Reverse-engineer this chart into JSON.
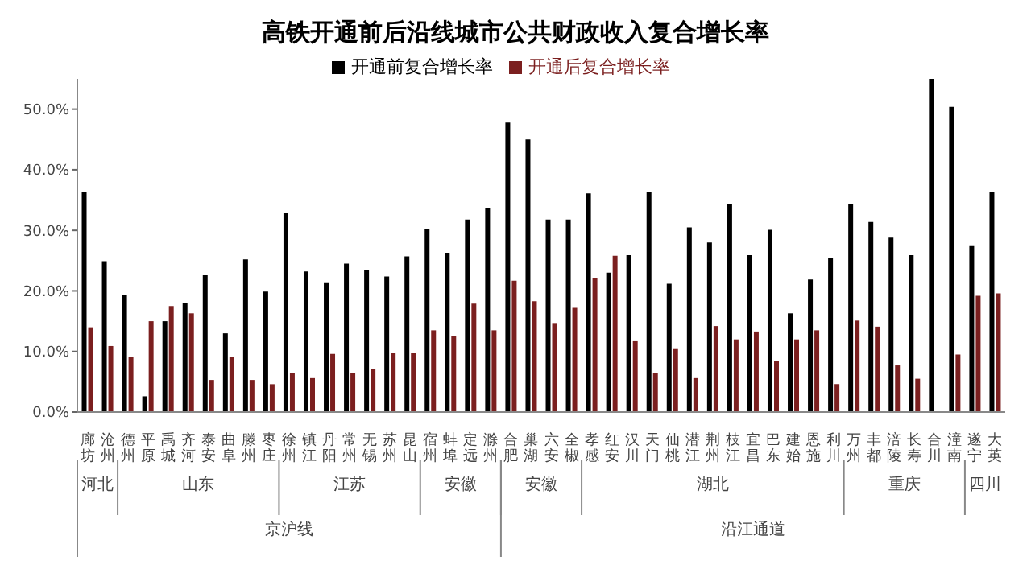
{
  "chart_data": {
    "type": "bar",
    "title": "高铁开通前后沿线城市公共财政收入复合增长率",
    "categories": [
      "廊坊",
      "沧州",
      "德州",
      "平原",
      "禹城",
      "齐河",
      "泰安",
      "曲阜",
      "滕州",
      "枣庄",
      "徐州",
      "镇江",
      "丹阳",
      "常州",
      "无锡",
      "苏州",
      "昆山",
      "宿州",
      "蚌埠",
      "定远",
      "滁州",
      "合肥",
      "巢湖",
      "六安",
      "全椒",
      "孝感",
      "红安",
      "汉川",
      "天门",
      "仙桃",
      "潜江",
      "荆州",
      "枝江",
      "宜昌",
      "巴东",
      "建始",
      "恩施",
      "利川",
      "万州",
      "丰都",
      "涪陵",
      "长寿",
      "合川",
      "潼南",
      "遂宁",
      "大英"
    ],
    "series": [
      {
        "name": "开通前复合增长率",
        "color": "#000000",
        "values": [
          36.4,
          24.9,
          19.3,
          2.6,
          15.0,
          18.0,
          22.6,
          13.0,
          25.2,
          19.9,
          32.8,
          23.2,
          21.3,
          24.5,
          23.4,
          22.4,
          25.7,
          30.3,
          26.3,
          31.8,
          33.6,
          47.8,
          45.0,
          31.8,
          31.8,
          36.1,
          23.0,
          25.9,
          36.4,
          21.2,
          30.5,
          28.0,
          34.3,
          25.9,
          30.1,
          16.3,
          21.9,
          25.4,
          34.3,
          31.4,
          28.8,
          25.9,
          55.0,
          50.4,
          27.4,
          36.4
        ]
      },
      {
        "name": "开通后复合增长率",
        "color": "#7b1f1f",
        "values": [
          14.0,
          10.9,
          9.1,
          15.0,
          17.5,
          16.3,
          5.3,
          9.1,
          5.3,
          4.6,
          6.4,
          5.6,
          9.6,
          6.4,
          7.1,
          9.7,
          9.7,
          13.5,
          12.6,
          17.9,
          13.5,
          21.7,
          18.3,
          14.7,
          17.2,
          22.1,
          25.8,
          11.7,
          6.4,
          10.4,
          5.6,
          14.2,
          12.0,
          13.3,
          8.4,
          12.0,
          13.5,
          4.6,
          15.1,
          14.1,
          7.7,
          5.5,
          null,
          9.5,
          19.2,
          19.6
        ]
      }
    ],
    "ylim": [
      0,
      55
    ],
    "yticks": [
      {
        "value": 0,
        "label": "0.0%"
      },
      {
        "value": 10,
        "label": "10.0%"
      },
      {
        "value": 20,
        "label": "20.0%"
      },
      {
        "value": 30,
        "label": "30.0%"
      },
      {
        "value": 40,
        "label": "40.0%"
      },
      {
        "value": 50,
        "label": "50.0%"
      }
    ],
    "annotations": [
      "河北",
      "山东",
      "江苏",
      "安徽",
      "安徽",
      "湖北",
      "重庆",
      "四川",
      "京沪线",
      "沿江通道"
    ],
    "legend": "top",
    "grid": false
  }
}
